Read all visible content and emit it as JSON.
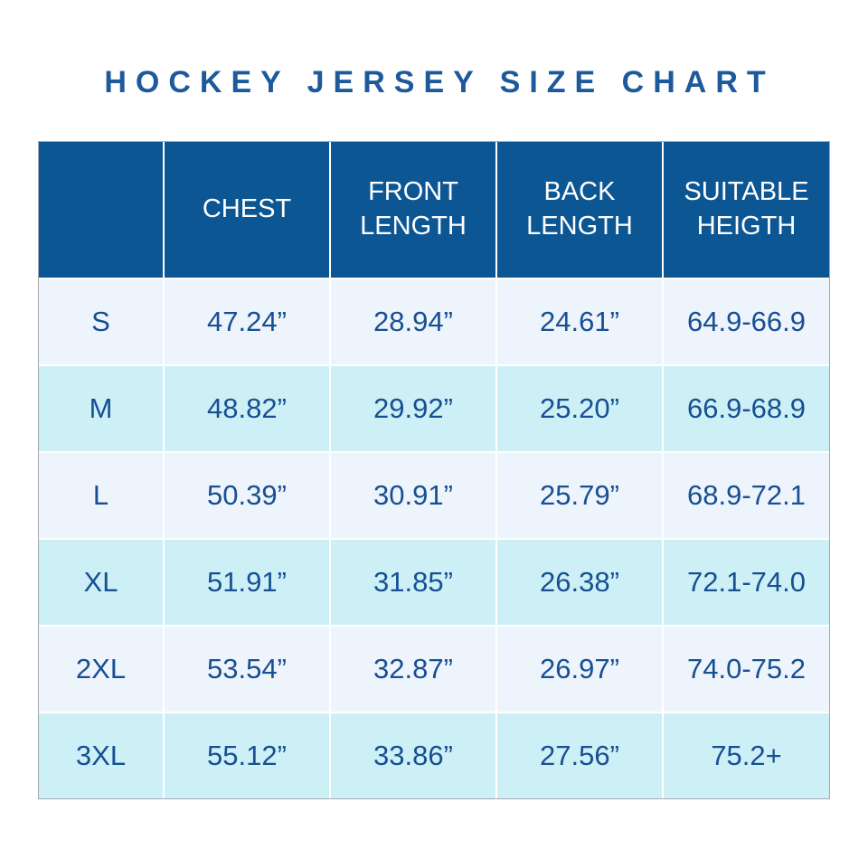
{
  "title": "HOCKEY JERSEY SIZE CHART",
  "chart_data": {
    "type": "table",
    "title": "HOCKEY JERSEY SIZE CHART",
    "columns": [
      "",
      "CHEST",
      "FRONT LENGTH",
      "BACK LENGTH",
      "SUITABLE HEIGTH"
    ],
    "rows": [
      [
        "S",
        "47.24”",
        "28.94”",
        "24.61”",
        "64.9-66.9"
      ],
      [
        "M",
        "48.82”",
        "29.92”",
        "25.20”",
        "66.9-68.9"
      ],
      [
        "L",
        "50.39”",
        "30.91”",
        "25.79”",
        "68.9-72.1"
      ],
      [
        "XL",
        "51.91”",
        "31.85”",
        "26.38”",
        "72.1-74.0"
      ],
      [
        "2XL",
        "53.54”",
        "32.87”",
        "26.97”",
        "74.0-75.2"
      ],
      [
        "3XL",
        "55.12”",
        "33.86”",
        "27.56”",
        "75.2+"
      ]
    ]
  },
  "colors": {
    "title_text": "#1d5a9c",
    "header_bg": "#0d5694",
    "header_text": "#ffffff",
    "cell_text": "#174f92",
    "row_light": "#eef4fc",
    "row_alt": "#cdf0f7",
    "table_border": "#a2aab0"
  }
}
